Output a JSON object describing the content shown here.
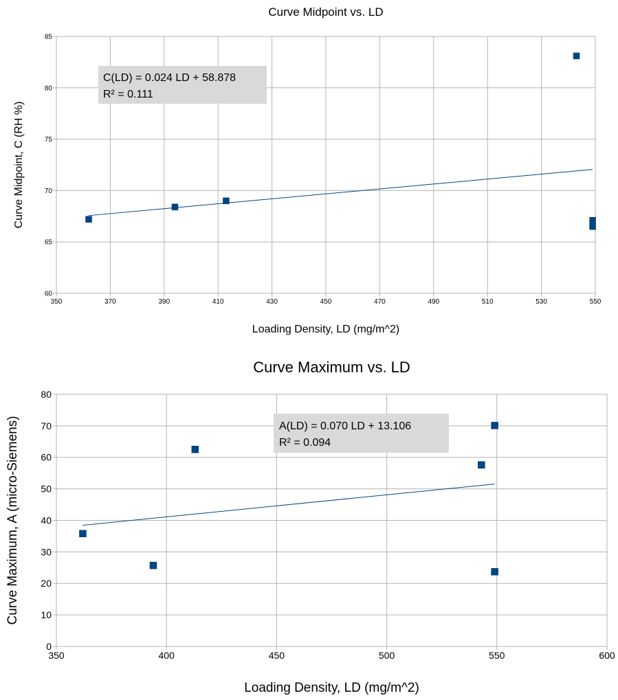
{
  "chart_data": [
    {
      "type": "scatter",
      "title": "Curve Midpoint vs. LD",
      "xlabel": "Loading Density, LD (mg/m^2)",
      "ylabel": "Curve Midpoint, C (RH %)",
      "xlim": [
        350,
        550
      ],
      "ylim": [
        60,
        85
      ],
      "xticks": [
        350,
        370,
        390,
        410,
        430,
        450,
        470,
        490,
        510,
        530,
        550
      ],
      "yticks": [
        60,
        65,
        70,
        75,
        80,
        85
      ],
      "grid": true,
      "points": [
        {
          "x": 362,
          "y": 67.2
        },
        {
          "x": 394,
          "y": 68.4
        },
        {
          "x": 413,
          "y": 69.0
        },
        {
          "x": 543,
          "y": 83.1
        },
        {
          "x": 549,
          "y": 67.1
        },
        {
          "x": 549,
          "y": 66.5
        }
      ],
      "trendline": {
        "slope": 0.024,
        "intercept": 58.878,
        "x_range": [
          362,
          549
        ]
      },
      "equation": [
        "C(LD) = 0.024 LD + 58.878",
        "R² = 0.111"
      ],
      "colors": {
        "marker": "#004586",
        "trend": "#004586",
        "grid": "#b3b3b3",
        "box": "#d9d9d9"
      }
    },
    {
      "type": "scatter",
      "title": "Curve Maximum vs. LD",
      "xlabel": "Loading Density, LD (mg/m^2)",
      "ylabel": "Curve Maximum, A (micro-Siemens)",
      "xlim": [
        350,
        600
      ],
      "ylim": [
        0,
        80
      ],
      "xticks": [
        350,
        400,
        450,
        500,
        550,
        600
      ],
      "yticks": [
        0,
        10,
        20,
        30,
        40,
        50,
        60,
        70,
        80
      ],
      "grid": true,
      "points": [
        {
          "x": 362,
          "y": 35.8
        },
        {
          "x": 394,
          "y": 25.7
        },
        {
          "x": 413,
          "y": 62.5
        },
        {
          "x": 543,
          "y": 57.6
        },
        {
          "x": 549,
          "y": 70.1
        },
        {
          "x": 549,
          "y": 23.7
        }
      ],
      "trendline": {
        "slope": 0.07,
        "intercept": 13.106,
        "x_range": [
          362,
          549
        ]
      },
      "equation": [
        "A(LD) = 0.070 LD + 13.106",
        "R² = 0.094"
      ],
      "colors": {
        "marker": "#004586",
        "trend": "#004586",
        "grid": "#b3b3b3",
        "box": "#d9d9d9"
      }
    }
  ]
}
